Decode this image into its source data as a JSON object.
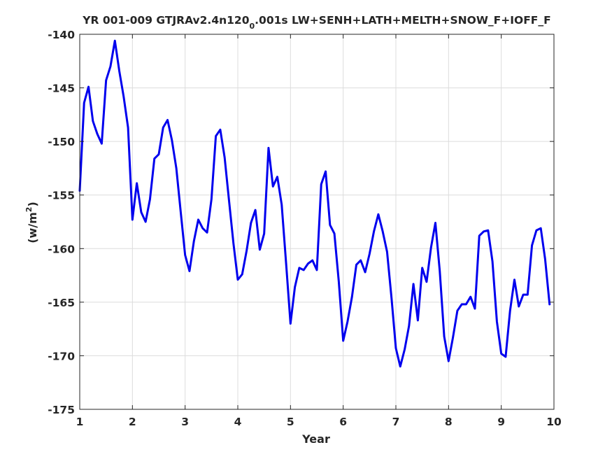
{
  "chart_data": {
    "type": "line",
    "title_parts": [
      "YR 001-009 GTJRAv2.4n120",
      "0",
      ".001s LW+SENH+LATH+MELTH+SNOW_F+IOFF_F"
    ],
    "xlabel": "Year",
    "ylabel_parts": [
      "(w/m",
      "2",
      ")"
    ],
    "xlim": [
      1,
      10
    ],
    "ylim": [
      -175,
      -140
    ],
    "xticks": [
      1,
      2,
      3,
      4,
      5,
      6,
      7,
      8,
      9,
      10
    ],
    "yticks": [
      -140,
      -145,
      -150,
      -155,
      -160,
      -165,
      -170,
      -175
    ],
    "grid": true,
    "series": [
      {
        "color": "#0000ee",
        "x": [
          1.0,
          1.083,
          1.167,
          1.25,
          1.333,
          1.417,
          1.5,
          1.583,
          1.667,
          1.75,
          1.833,
          1.917,
          2.0,
          2.083,
          2.167,
          2.25,
          2.333,
          2.417,
          2.5,
          2.583,
          2.667,
          2.75,
          2.833,
          2.917,
          3.0,
          3.083,
          3.167,
          3.25,
          3.333,
          3.417,
          3.5,
          3.583,
          3.667,
          3.75,
          3.833,
          3.917,
          4.0,
          4.083,
          4.167,
          4.25,
          4.333,
          4.417,
          4.5,
          4.583,
          4.667,
          4.75,
          4.833,
          4.917,
          5.0,
          5.083,
          5.167,
          5.25,
          5.333,
          5.417,
          5.5,
          5.583,
          5.667,
          5.75,
          5.833,
          5.917,
          6.0,
          6.083,
          6.167,
          6.25,
          6.333,
          6.417,
          6.5,
          6.583,
          6.667,
          6.75,
          6.833,
          6.917,
          7.0,
          7.083,
          7.167,
          7.25,
          7.333,
          7.417,
          7.5,
          7.583,
          7.667,
          7.75,
          7.833,
          7.917,
          8.0,
          8.083,
          8.167,
          8.25,
          8.333,
          8.417,
          8.5,
          8.583,
          8.667,
          8.75,
          8.833,
          8.917,
          9.0,
          9.083,
          9.167,
          9.25,
          9.333,
          9.417,
          9.5,
          9.583,
          9.667,
          9.75,
          9.833,
          9.917
        ],
        "y": [
          -154.6,
          -146.4,
          -144.9,
          -148.1,
          -149.3,
          -150.2,
          -144.3,
          -143.0,
          -140.6,
          -143.4,
          -145.8,
          -148.7,
          -157.3,
          -153.9,
          -156.6,
          -157.5,
          -155.4,
          -151.6,
          -151.2,
          -148.7,
          -148.0,
          -149.9,
          -152.5,
          -156.6,
          -160.6,
          -162.1,
          -159.3,
          -157.3,
          -158.1,
          -158.5,
          -155.4,
          -149.5,
          -148.9,
          -151.5,
          -155.5,
          -159.5,
          -162.9,
          -162.4,
          -160.2,
          -157.6,
          -156.4,
          -160.1,
          -158.6,
          -150.6,
          -154.2,
          -153.3,
          -155.9,
          -161.4,
          -167.0,
          -163.6,
          -161.8,
          -162.0,
          -161.4,
          -161.1,
          -162.0,
          -154.0,
          -152.8,
          -157.8,
          -158.6,
          -163.1,
          -168.6,
          -166.8,
          -164.5,
          -161.5,
          -161.1,
          -162.2,
          -160.5,
          -158.4,
          -156.8,
          -158.4,
          -160.3,
          -164.6,
          -169.3,
          -171.0,
          -169.4,
          -167.2,
          -163.3,
          -166.7,
          -161.8,
          -163.1,
          -159.9,
          -157.6,
          -162.1,
          -168.2,
          -170.5,
          -168.3,
          -165.8,
          -165.2,
          -165.2,
          -164.5,
          -165.6,
          -158.8,
          -158.4,
          -158.3,
          -161.2,
          -166.8,
          -169.8,
          -170.1,
          -165.8,
          -162.9,
          -165.4,
          -164.3,
          -164.3,
          -159.7,
          -158.3,
          -158.1,
          -161.0,
          -165.2
        ]
      }
    ]
  }
}
